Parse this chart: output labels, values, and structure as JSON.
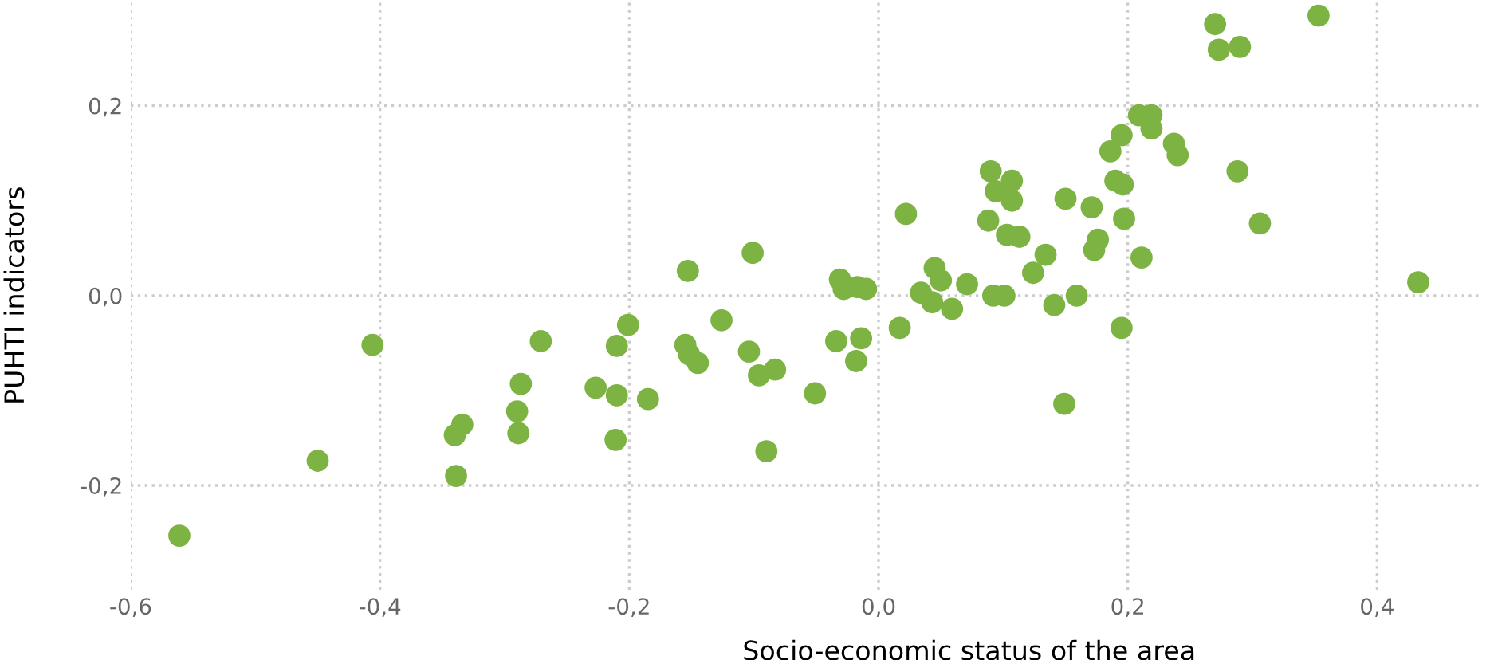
{
  "chart_data": {
    "type": "scatter",
    "xlabel": "Socio-economic status of the area",
    "ylabel": "PUHTI indicators",
    "xlim": [
      -0.6,
      0.485
    ],
    "ylim": [
      -0.31,
      0.31
    ],
    "xticks": [
      {
        "value": -0.6,
        "label": "-0,6"
      },
      {
        "value": -0.4,
        "label": "-0,4"
      },
      {
        "value": -0.2,
        "label": "-0,2"
      },
      {
        "value": 0,
        "label": "0,0"
      },
      {
        "value": 0.2,
        "label": "0,2"
      },
      {
        "value": 0.4,
        "label": "0,4"
      }
    ],
    "yticks": [
      {
        "value": -0.2,
        "label": "-0,2"
      },
      {
        "value": 0,
        "label": "0,0"
      },
      {
        "value": 0.2,
        "label": "0,2"
      }
    ],
    "grid": true,
    "marker": "circle",
    "series": [
      {
        "color": "#7cb342",
        "x": [
          -0.561,
          -0.45,
          -0.406,
          -0.34,
          -0.334,
          -0.339,
          -0.29,
          -0.287,
          -0.289,
          -0.271,
          -0.227,
          -0.21,
          -0.21,
          -0.211,
          -0.201,
          -0.185,
          -0.153,
          -0.155,
          -0.152,
          -0.145,
          -0.126,
          -0.104,
          -0.101,
          -0.096,
          -0.083,
          -0.09,
          -0.051,
          -0.034,
          -0.031,
          -0.028,
          -0.017,
          -0.01,
          -0.018,
          -0.014,
          0.022,
          0.017,
          0.034,
          0.045,
          0.05,
          0.043,
          0.059,
          0.071,
          0.09,
          0.094,
          0.107,
          0.107,
          0.088,
          0.103,
          0.113,
          0.092,
          0.101,
          0.124,
          0.134,
          0.141,
          0.15,
          0.159,
          0.171,
          0.173,
          0.176,
          0.186,
          0.195,
          0.19,
          0.196,
          0.197,
          0.211,
          0.195,
          0.149,
          0.209,
          0.219,
          0.219,
          0.237,
          0.24,
          0.288,
          0.306,
          0.27,
          0.273,
          0.29,
          0.353,
          0.433
        ],
        "values": [
          -0.253,
          -0.174,
          -0.052,
          -0.147,
          -0.136,
          -0.19,
          -0.122,
          -0.093,
          -0.145,
          -0.048,
          -0.097,
          -0.105,
          -0.053,
          -0.152,
          -0.031,
          -0.109,
          0.026,
          -0.052,
          -0.062,
          -0.071,
          -0.026,
          -0.059,
          0.045,
          -0.084,
          -0.078,
          -0.164,
          -0.103,
          -0.048,
          0.017,
          0.007,
          0.009,
          0.007,
          -0.069,
          -0.045,
          0.086,
          -0.034,
          0.003,
          0.029,
          0.016,
          -0.007,
          -0.014,
          0.012,
          0.131,
          0.11,
          0.121,
          0.1,
          0.079,
          0.064,
          0.062,
          0.0,
          0.0,
          0.024,
          0.043,
          -0.01,
          0.102,
          0.0,
          0.093,
          0.048,
          0.059,
          0.152,
          0.169,
          0.121,
          0.117,
          0.081,
          0.04,
          -0.034,
          -0.114,
          0.19,
          0.19,
          0.176,
          0.16,
          0.148,
          0.131,
          0.076,
          0.286,
          0.259,
          0.262,
          0.295,
          0.014
        ]
      }
    ]
  }
}
